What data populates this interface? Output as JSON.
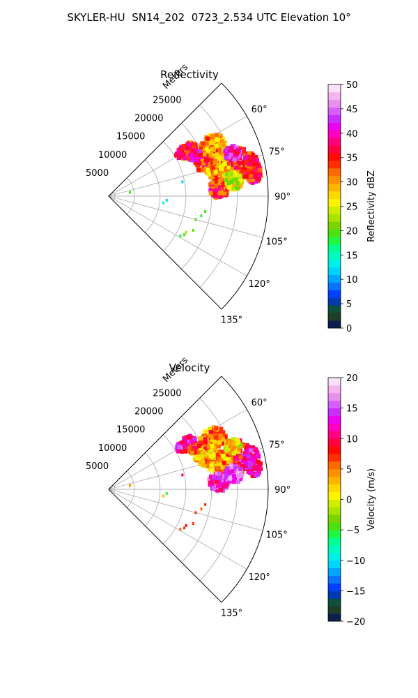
{
  "page_title": "SKYLER-HU  SN14_202  0723_2.534 UTC Elevation 10°",
  "chart_data": [
    {
      "type": "heatmap",
      "title": "Reflectivity",
      "projection": "polar sector",
      "radial_label": "Meters",
      "radial_ticks": [
        5000,
        10000,
        15000,
        20000,
        25000
      ],
      "radial_tick_labels": [
        "5000",
        "10000",
        "15000",
        "20000",
        "25000"
      ],
      "radial_range": [
        0,
        31000
      ],
      "azimuth_range_deg": [
        45,
        135
      ],
      "azimuth_ticks": [
        "60°",
        "75°",
        "90°",
        "105°",
        "120°",
        "135°"
      ],
      "grid": true,
      "colorbar": {
        "label": "Reflectivity dBZ",
        "range": [
          0,
          50
        ],
        "tick_labels": [
          "0",
          "5",
          "10",
          "15",
          "20",
          "25",
          "30",
          "35",
          "40",
          "45",
          "50"
        ],
        "colors": [
          "#0b1f4e",
          "#1e3f25",
          "#0f4f3c",
          "#003ab0",
          "#0040ff",
          "#0a74ff",
          "#00a6ff",
          "#00d3ff",
          "#00f0e8",
          "#00fbc0",
          "#00ff8c",
          "#20f740",
          "#50e010",
          "#7ad400",
          "#a8e400",
          "#d0ec00",
          "#fff400",
          "#ffd800",
          "#ffb400",
          "#ff9000",
          "#ff6a00",
          "#ff3000",
          "#ff0a00",
          "#ff0040",
          "#ff0080",
          "#ff00c0",
          "#ee00f0",
          "#c830ff",
          "#d660ff",
          "#e890ee",
          "#f4b4f0",
          "#fce0fa"
        ]
      },
      "echo_regions": [
        {
          "az": 70,
          "r": 20500,
          "daz": 7,
          "dr": 2800,
          "value": 34
        },
        {
          "az": 64,
          "r": 22500,
          "daz": 5,
          "dr": 2500,
          "value": 30
        },
        {
          "az": 60,
          "r": 17500,
          "daz": 4,
          "dr": 2200,
          "value": 36
        },
        {
          "az": 76,
          "r": 26000,
          "daz": 7,
          "dr": 2500,
          "value": 34
        },
        {
          "az": 76,
          "r": 22000,
          "daz": 5,
          "dr": 2400,
          "value": 30
        },
        {
          "az": 79,
          "r": 28500,
          "daz": 6,
          "dr": 1500,
          "value": 36
        },
        {
          "az": 86,
          "r": 21500,
          "daz": 5,
          "dr": 1800,
          "value": 35
        },
        {
          "az": 71,
          "r": 25500,
          "daz": 3,
          "dr": 1500,
          "value": 40
        },
        {
          "az": 65,
          "r": 18500,
          "daz": 2.5,
          "dr": 1200,
          "value": 38
        },
        {
          "az": 83,
          "r": 24500,
          "daz": 4,
          "dr": 1600,
          "value": 24
        }
      ],
      "echo_specks": [
        {
          "az": 80,
          "r": 4200,
          "value": 20
        },
        {
          "az": 79,
          "r": 14600,
          "value": 12
        },
        {
          "az": 94,
          "r": 11300,
          "value": 12
        },
        {
          "az": 97,
          "r": 10700,
          "value": 14
        },
        {
          "az": 99,
          "r": 19000,
          "value": 20
        },
        {
          "az": 102,
          "r": 18400,
          "value": 18
        },
        {
          "az": 105,
          "r": 17500,
          "value": 20
        },
        {
          "az": 112,
          "r": 17700,
          "value": 20
        },
        {
          "az": 115,
          "r": 16600,
          "value": 22
        },
        {
          "az": 117,
          "r": 16500,
          "value": 20
        },
        {
          "az": 119,
          "r": 15900,
          "value": 18
        }
      ]
    },
    {
      "type": "heatmap",
      "title": "Velocity",
      "projection": "polar sector",
      "radial_label": "Meters",
      "radial_ticks": [
        5000,
        10000,
        15000,
        20000,
        25000
      ],
      "radial_tick_labels": [
        "5000",
        "10000",
        "15000",
        "20000",
        "25000"
      ],
      "radial_range": [
        0,
        31000
      ],
      "azimuth_range_deg": [
        45,
        135
      ],
      "azimuth_ticks": [
        "60°",
        "75°",
        "90°",
        "105°",
        "120°",
        "135°"
      ],
      "grid": true,
      "colorbar": {
        "label": "Velocity (m/s)",
        "range": [
          -20,
          20
        ],
        "tick_labels": [
          "−20",
          "−15",
          "−10",
          "−5",
          "0",
          "5",
          "10",
          "15",
          "20"
        ],
        "colors": [
          "#0b1f4e",
          "#1e3f25",
          "#0f4f3c",
          "#003ab0",
          "#0040ff",
          "#0a74ff",
          "#00a6ff",
          "#00d3ff",
          "#00f0e8",
          "#00fbc0",
          "#00ff8c",
          "#20f740",
          "#50e010",
          "#7ad400",
          "#a8e400",
          "#d0ec00",
          "#fff400",
          "#ffd800",
          "#ffb400",
          "#ff9000",
          "#ff6a00",
          "#ff3000",
          "#ff0a00",
          "#ff0040",
          "#ff0080",
          "#ff00c0",
          "#ee00f0",
          "#c830ff",
          "#d660ff",
          "#e890ee",
          "#f4b4f0",
          "#fce0fa"
        ]
      },
      "echo_regions": [
        {
          "az": 70,
          "r": 20500,
          "daz": 7,
          "dr": 2800,
          "value": 2
        },
        {
          "az": 64,
          "r": 22500,
          "daz": 5,
          "dr": 2500,
          "value": 5
        },
        {
          "az": 60,
          "r": 17500,
          "daz": 4,
          "dr": 2200,
          "value": 12
        },
        {
          "az": 76,
          "r": 26000,
          "daz": 7,
          "dr": 2500,
          "value": 9
        },
        {
          "az": 76,
          "r": 22000,
          "daz": 5,
          "dr": 2400,
          "value": 4
        },
        {
          "az": 79,
          "r": 28500,
          "daz": 6,
          "dr": 1500,
          "value": 12
        },
        {
          "az": 86,
          "r": 21500,
          "daz": 5,
          "dr": 1800,
          "value": 14
        },
        {
          "az": 71,
          "r": 25500,
          "daz": 3,
          "dr": 1500,
          "value": 1
        },
        {
          "az": 65,
          "r": 18500,
          "daz": 2.5,
          "dr": 1200,
          "value": 6
        },
        {
          "az": 83,
          "r": 24500,
          "daz": 4,
          "dr": 1600,
          "value": 16
        }
      ],
      "echo_specks": [
        {
          "az": 80,
          "r": 4200,
          "value": 4
        },
        {
          "az": 79,
          "r": 14600,
          "value": 9
        },
        {
          "az": 94,
          "r": 11300,
          "value": -6
        },
        {
          "az": 97,
          "r": 10700,
          "value": 3
        },
        {
          "az": 99,
          "r": 19000,
          "value": 7
        },
        {
          "az": 102,
          "r": 18400,
          "value": 6
        },
        {
          "az": 105,
          "r": 17500,
          "value": 7
        },
        {
          "az": 112,
          "r": 17700,
          "value": 7
        },
        {
          "az": 115,
          "r": 16600,
          "value": 8
        },
        {
          "az": 117,
          "r": 16500,
          "value": 7
        },
        {
          "az": 119,
          "r": 15900,
          "value": 6
        }
      ]
    }
  ]
}
